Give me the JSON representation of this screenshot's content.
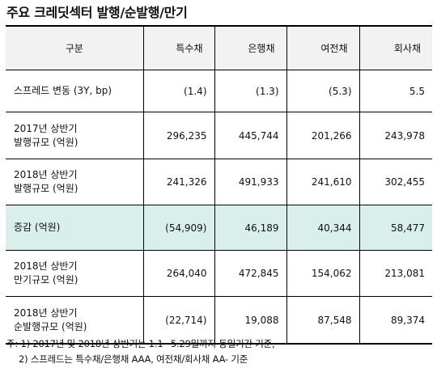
{
  "title": "주요 크레딧섹터 발행/순발행/만기",
  "table": {
    "headers": [
      "구분",
      "특수채",
      "은행채",
      "여전채",
      "회사채"
    ],
    "rows": [
      {
        "label": [
          "스프레드 변동 (3Y, bp)"
        ],
        "values": [
          "(1.4)",
          "(1.3)",
          "(5.3)",
          "5.5"
        ]
      },
      {
        "label": [
          "2017년 상반기",
          "발행규모 (억원)"
        ],
        "values": [
          "296,235",
          "445,744",
          "201,266",
          "243,978"
        ]
      },
      {
        "label": [
          "2018년 상반기",
          "발행규모 (억원)"
        ],
        "values": [
          "241,326",
          "491,933",
          "241,610",
          "302,455"
        ]
      },
      {
        "label": [
          "증감 (억원)"
        ],
        "values": [
          "(54,909)",
          "46,189",
          "40,344",
          "58,477"
        ]
      },
      {
        "label": [
          "2018년 상반기",
          "만기규모 (억원)"
        ],
        "values": [
          "264,040",
          "472,845",
          "154,062",
          "213,081"
        ]
      },
      {
        "label": [
          "2018년 상반기",
          "순발행규모 (억원)"
        ],
        "values": [
          "(22,714)",
          "19,088",
          "87,548",
          "89,374"
        ]
      }
    ]
  },
  "notes": [
    "주: 1) 2017년 및 2018년 상반기는 1.1~5.29일까지 동일기간 기준,",
    "2) 스프레드는 특수채/은행채 AAA, 여전채/회사채 AA- 기준"
  ],
  "colors": {
    "header_bg": "#f2f2f2",
    "highlight_row_bg": "#d9efec"
  }
}
